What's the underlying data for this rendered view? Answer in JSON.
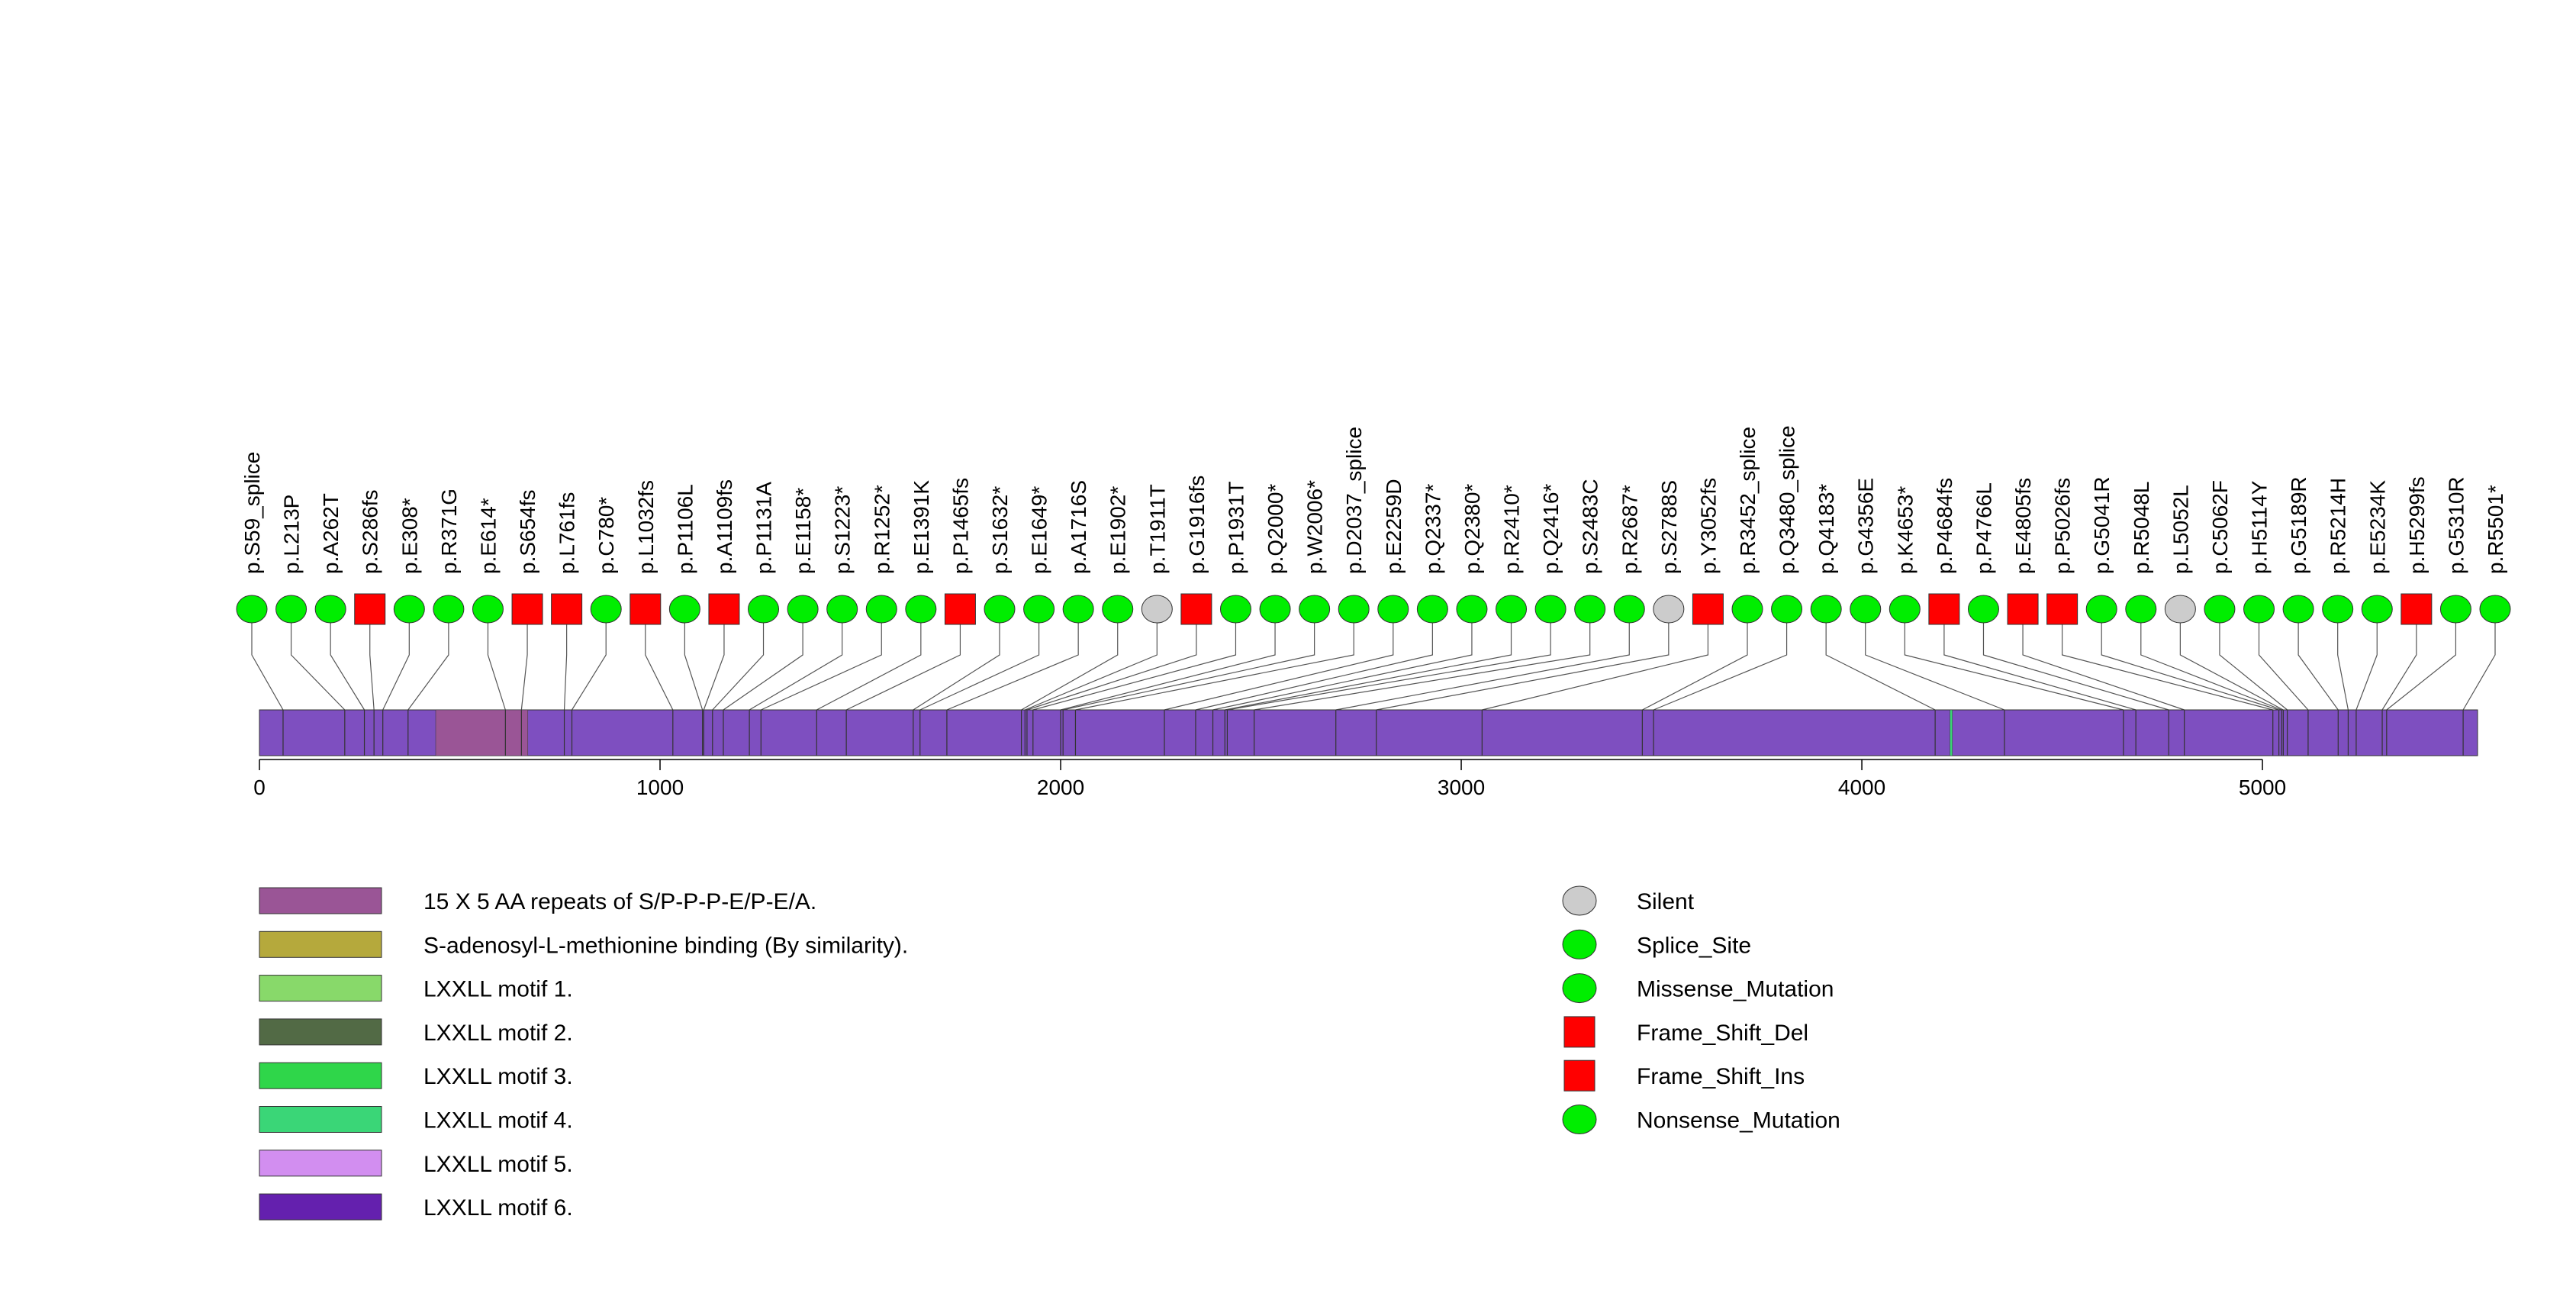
{
  "chart_data": {
    "type": "lollipop",
    "title": "",
    "protein_length": 5537,
    "x_ticks": [
      0,
      1000,
      2000,
      3000,
      4000,
      5000
    ],
    "x_tick_labels": [
      "0",
      "1000",
      "2000",
      "3000",
      "4000",
      "5000"
    ],
    "colors": {
      "protein": "#7e4fc0",
      "Silent": "#cccccc",
      "Splice_Site": "#00ee00",
      "Missense_Mutation": "#00ee00",
      "Frame_Shift_Del": "#ff0000",
      "Frame_Shift_Ins": "#ff0000",
      "Nonsense_Mutation": "#00ee00"
    },
    "domains": [
      {
        "name": "15 X 5 AA repeats of S/P-P-P-E/P-E/A.",
        "start": 440,
        "end": 670,
        "color": "#9a5596"
      },
      {
        "name": "LXXLL motif 4.",
        "start": 4220,
        "end": 4226,
        "color": "#3ad677"
      }
    ],
    "mutations": [
      {
        "label": "p.S59_splice",
        "pos": 59,
        "type": "Splice_Site"
      },
      {
        "label": "p.L213P",
        "pos": 213,
        "type": "Missense_Mutation"
      },
      {
        "label": "p.A262T",
        "pos": 262,
        "type": "Missense_Mutation"
      },
      {
        "label": "p.S286fs",
        "pos": 286,
        "type": "Frame_Shift_Del"
      },
      {
        "label": "p.E308*",
        "pos": 308,
        "type": "Nonsense_Mutation"
      },
      {
        "label": "p.R371G",
        "pos": 371,
        "type": "Missense_Mutation"
      },
      {
        "label": "p.E614*",
        "pos": 614,
        "type": "Nonsense_Mutation"
      },
      {
        "label": "p.S654fs",
        "pos": 654,
        "type": "Frame_Shift_Del"
      },
      {
        "label": "p.L761fs",
        "pos": 761,
        "type": "Frame_Shift_Del"
      },
      {
        "label": "p.C780*",
        "pos": 780,
        "type": "Nonsense_Mutation"
      },
      {
        "label": "p.L1032fs",
        "pos": 1032,
        "type": "Frame_Shift_Del"
      },
      {
        "label": "p.P1106L",
        "pos": 1106,
        "type": "Missense_Mutation"
      },
      {
        "label": "p.A1109fs",
        "pos": 1109,
        "type": "Frame_Shift_Del"
      },
      {
        "label": "p.P1131A",
        "pos": 1131,
        "type": "Missense_Mutation"
      },
      {
        "label": "p.E1158*",
        "pos": 1158,
        "type": "Nonsense_Mutation"
      },
      {
        "label": "p.S1223*",
        "pos": 1223,
        "type": "Nonsense_Mutation"
      },
      {
        "label": "p.R1252*",
        "pos": 1252,
        "type": "Nonsense_Mutation"
      },
      {
        "label": "p.E1391K",
        "pos": 1391,
        "type": "Missense_Mutation"
      },
      {
        "label": "p.P1465fs",
        "pos": 1465,
        "type": "Frame_Shift_Del"
      },
      {
        "label": "p.S1632*",
        "pos": 1632,
        "type": "Nonsense_Mutation"
      },
      {
        "label": "p.E1649*",
        "pos": 1649,
        "type": "Nonsense_Mutation"
      },
      {
        "label": "p.A1716S",
        "pos": 1716,
        "type": "Missense_Mutation"
      },
      {
        "label": "p.E1902*",
        "pos": 1902,
        "type": "Nonsense_Mutation"
      },
      {
        "label": "p.T1911T",
        "pos": 1911,
        "type": "Silent"
      },
      {
        "label": "p.G1916fs",
        "pos": 1916,
        "type": "Frame_Shift_Del"
      },
      {
        "label": "p.P1931T",
        "pos": 1931,
        "type": "Missense_Mutation"
      },
      {
        "label": "p.Q2000*",
        "pos": 2000,
        "type": "Nonsense_Mutation"
      },
      {
        "label": "p.W2006*",
        "pos": 2006,
        "type": "Nonsense_Mutation"
      },
      {
        "label": "p.D2037_splice",
        "pos": 2037,
        "type": "Splice_Site"
      },
      {
        "label": "p.E2259D",
        "pos": 2259,
        "type": "Missense_Mutation"
      },
      {
        "label": "p.Q2337*",
        "pos": 2337,
        "type": "Nonsense_Mutation"
      },
      {
        "label": "p.Q2380*",
        "pos": 2380,
        "type": "Nonsense_Mutation"
      },
      {
        "label": "p.R2410*",
        "pos": 2410,
        "type": "Nonsense_Mutation"
      },
      {
        "label": "p.Q2416*",
        "pos": 2416,
        "type": "Nonsense_Mutation"
      },
      {
        "label": "p.S2483C",
        "pos": 2483,
        "type": "Missense_Mutation"
      },
      {
        "label": "p.R2687*",
        "pos": 2687,
        "type": "Nonsense_Mutation"
      },
      {
        "label": "p.S2788S",
        "pos": 2788,
        "type": "Silent"
      },
      {
        "label": "p.Y3052fs",
        "pos": 3052,
        "type": "Frame_Shift_Del"
      },
      {
        "label": "p.R3452_splice",
        "pos": 3452,
        "type": "Splice_Site"
      },
      {
        "label": "p.Q3480_splice",
        "pos": 3480,
        "type": "Splice_Site"
      },
      {
        "label": "p.Q4183*",
        "pos": 4183,
        "type": "Nonsense_Mutation"
      },
      {
        "label": "p.G4356E",
        "pos": 4356,
        "type": "Missense_Mutation"
      },
      {
        "label": "p.K4653*",
        "pos": 4653,
        "type": "Nonsense_Mutation"
      },
      {
        "label": "p.P4684fs",
        "pos": 4684,
        "type": "Frame_Shift_Del"
      },
      {
        "label": "p.P4766L",
        "pos": 4766,
        "type": "Missense_Mutation"
      },
      {
        "label": "p.E4805fs",
        "pos": 4805,
        "type": "Frame_Shift_Del"
      },
      {
        "label": "p.P5026fs",
        "pos": 5026,
        "type": "Frame_Shift_Del"
      },
      {
        "label": "p.G5041R",
        "pos": 5041,
        "type": "Missense_Mutation"
      },
      {
        "label": "p.R5048L",
        "pos": 5048,
        "type": "Missense_Mutation"
      },
      {
        "label": "p.L5052L",
        "pos": 5052,
        "type": "Silent"
      },
      {
        "label": "p.C5062F",
        "pos": 5062,
        "type": "Missense_Mutation"
      },
      {
        "label": "p.H5114Y",
        "pos": 5114,
        "type": "Missense_Mutation"
      },
      {
        "label": "p.G5189R",
        "pos": 5189,
        "type": "Missense_Mutation"
      },
      {
        "label": "p.R5214H",
        "pos": 5214,
        "type": "Missense_Mutation"
      },
      {
        "label": "p.E5234K",
        "pos": 5234,
        "type": "Missense_Mutation"
      },
      {
        "label": "p.H5299fs",
        "pos": 5299,
        "type": "Frame_Shift_Del"
      },
      {
        "label": "p.G5310R",
        "pos": 5310,
        "type": "Missense_Mutation"
      },
      {
        "label": "p.R5501*",
        "pos": 5501,
        "type": "Nonsense_Mutation"
      }
    ],
    "domain_legend": [
      {
        "label": "15 X 5 AA repeats of S/P-P-P-E/P-E/A.",
        "color": "#9a5596"
      },
      {
        "label": "S-adenosyl-L-methionine binding (By similarity).",
        "color": "#b5a93c"
      },
      {
        "label": "LXXLL motif 1.",
        "color": "#88d96a"
      },
      {
        "label": "LXXLL motif 2.",
        "color": "#526a45"
      },
      {
        "label": "LXXLL motif 3.",
        "color": "#2fd64a"
      },
      {
        "label": "LXXLL motif 4.",
        "color": "#3ad677"
      },
      {
        "label": "LXXLL motif 5.",
        "color": "#d28ef0"
      },
      {
        "label": "LXXLL motif 6.",
        "color": "#6420ae"
      }
    ],
    "mutation_legend": [
      {
        "label": "Silent",
        "shape": "circle",
        "color": "#cccccc"
      },
      {
        "label": "Splice_Site",
        "shape": "circle",
        "color": "#00ee00"
      },
      {
        "label": "Missense_Mutation",
        "shape": "circle",
        "color": "#00ee00"
      },
      {
        "label": "Frame_Shift_Del",
        "shape": "square",
        "color": "#ff0000"
      },
      {
        "label": "Frame_Shift_Ins",
        "shape": "square",
        "color": "#ff0000"
      },
      {
        "label": "Nonsense_Mutation",
        "shape": "circle",
        "color": "#00ee00"
      }
    ]
  }
}
